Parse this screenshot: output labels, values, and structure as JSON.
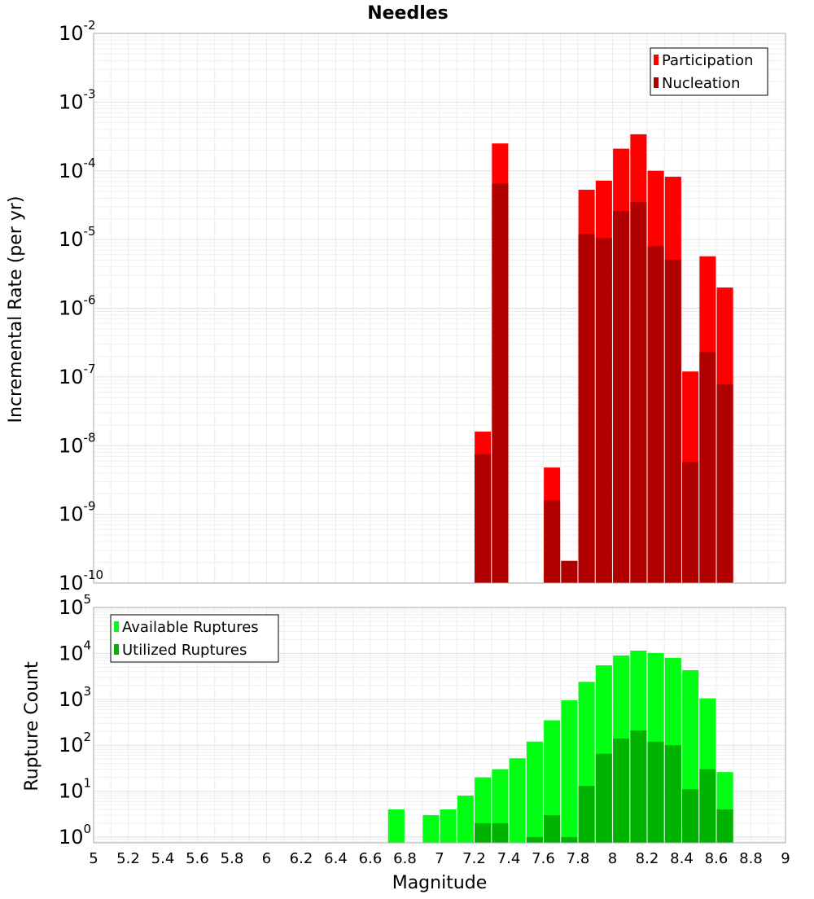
{
  "chart_data": [
    {
      "type": "bar",
      "title": "Needles",
      "xlabel": "",
      "ylabel": "Incremental Rate (per yr)",
      "yscale": "log",
      "ylim": [
        1e-10,
        0.01
      ],
      "xlim": [
        5,
        9
      ],
      "grid": true,
      "legend_position": "top-right",
      "series": [
        {
          "name": "Participation",
          "color": "#ff0000",
          "x": [
            7.25,
            7.35,
            7.65,
            7.75,
            7.85,
            7.95,
            8.05,
            8.15,
            8.25,
            8.35,
            8.45,
            8.55,
            8.65
          ],
          "values": [
            1.6e-08,
            0.00025,
            4.8e-09,
            2.1e-10,
            5.3e-05,
            7.2e-05,
            0.00021,
            0.00034,
            0.0001,
            8.2e-05,
            1.2e-07,
            5.7e-06,
            2e-06
          ]
        },
        {
          "name": "Nucleation",
          "color": "#b00000",
          "x": [
            7.25,
            7.35,
            7.65,
            7.75,
            7.85,
            7.95,
            8.05,
            8.15,
            8.25,
            8.35,
            8.45,
            8.55,
            8.65
          ],
          "values": [
            7.5e-09,
            6.5e-05,
            1.6e-09,
            2.1e-10,
            1.2e-05,
            1.05e-05,
            2.6e-05,
            3.5e-05,
            8e-06,
            5.1e-06,
            5.8e-09,
            2.3e-07,
            7.8e-08
          ]
        }
      ]
    },
    {
      "type": "bar",
      "title": "",
      "xlabel": "Magnitude",
      "ylabel": "Rupture Count",
      "yscale": "log",
      "ylim": [
        0.75,
        100000.0
      ],
      "xlim": [
        5,
        9
      ],
      "grid": true,
      "legend_position": "top-left",
      "series": [
        {
          "name": "Available Ruptures",
          "color": "#00ff13",
          "x": [
            6.75,
            6.95,
            7.05,
            7.15,
            7.25,
            7.35,
            7.45,
            7.55,
            7.65,
            7.75,
            7.85,
            7.95,
            8.05,
            8.15,
            8.25,
            8.35,
            8.45,
            8.55,
            8.65
          ],
          "values": [
            4,
            3,
            4,
            8,
            20,
            30,
            52,
            120,
            350,
            950,
            2400,
            5500,
            9000,
            11500,
            10200,
            8000,
            4300,
            1050,
            26
          ]
        },
        {
          "name": "Utilized Ruptures",
          "color": "#00b300",
          "x": [
            7.25,
            7.35,
            7.55,
            7.65,
            7.75,
            7.85,
            7.95,
            8.05,
            8.15,
            8.25,
            8.35,
            8.45,
            8.55,
            8.65
          ],
          "values": [
            2,
            2,
            1,
            3,
            1,
            13,
            65,
            140,
            210,
            120,
            100,
            11,
            30,
            4
          ]
        }
      ]
    }
  ],
  "x_ticks": [
    "5",
    "5.2",
    "5.4",
    "5.6",
    "5.8",
    "6",
    "6.2",
    "6.4",
    "6.6",
    "6.8",
    "7",
    "7.2",
    "7.4",
    "7.6",
    "7.8",
    "8",
    "8.2",
    "8.4",
    "8.6",
    "8.8",
    "9"
  ],
  "top_y_ticks": [
    {
      "base": "10",
      "exp": "-10"
    },
    {
      "base": "10",
      "exp": "-9"
    },
    {
      "base": "10",
      "exp": "-8"
    },
    {
      "base": "10",
      "exp": "-7"
    },
    {
      "base": "10",
      "exp": "-6"
    },
    {
      "base": "10",
      "exp": "-5"
    },
    {
      "base": "10",
      "exp": "-4"
    },
    {
      "base": "10",
      "exp": "-3"
    },
    {
      "base": "10",
      "exp": "-2"
    }
  ],
  "bottom_y_ticks": [
    {
      "base": "10",
      "exp": "0"
    },
    {
      "base": "10",
      "exp": "1"
    },
    {
      "base": "10",
      "exp": "2"
    },
    {
      "base": "10",
      "exp": "3"
    },
    {
      "base": "10",
      "exp": "4"
    },
    {
      "base": "10",
      "exp": "5"
    }
  ]
}
